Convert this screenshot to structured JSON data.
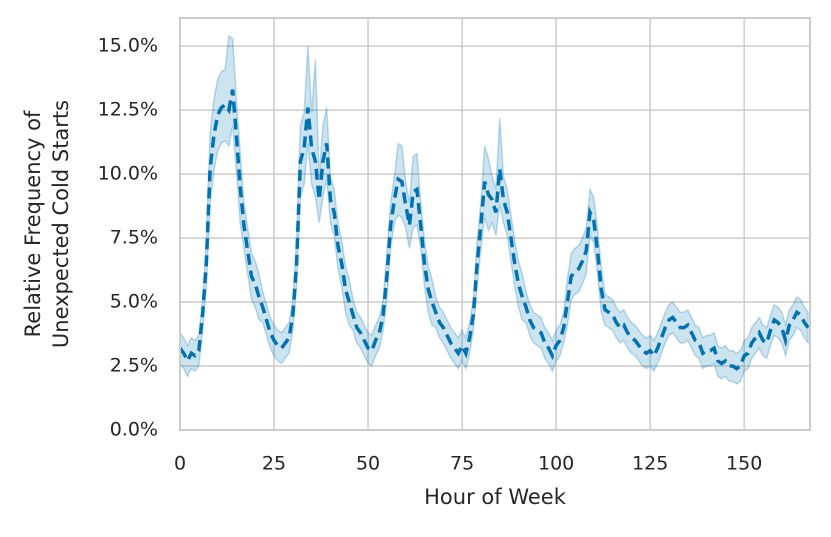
{
  "chart_data": {
    "type": "line",
    "xlabel": "Hour of Week",
    "ylabel": [
      "Relative Frequency of",
      "Unexpected Cold Starts"
    ],
    "xlim": [
      0,
      167.5
    ],
    "xticks": [
      0,
      25,
      50,
      75,
      100,
      125,
      150
    ],
    "ylim": [
      0,
      16.1
    ],
    "yticks": [
      {
        "value": 0,
        "label": "0.0%"
      },
      {
        "value": 2.5,
        "label": "2.5%"
      },
      {
        "value": 5,
        "label": "5.0%"
      },
      {
        "value": 7.5,
        "label": "7.5%"
      },
      {
        "value": 10,
        "label": "10.0%"
      },
      {
        "value": 12.5,
        "label": "12.5%"
      },
      {
        "value": 15,
        "label": "15.0%"
      }
    ],
    "grid": true,
    "x": [
      0,
      1,
      2,
      3,
      4,
      5,
      6,
      7,
      8,
      9,
      10,
      11,
      12,
      13,
      14,
      15,
      16,
      17,
      18,
      19,
      20,
      21,
      22,
      23,
      24,
      25,
      26,
      27,
      28,
      29,
      30,
      31,
      32,
      33,
      34,
      35,
      36,
      37,
      38,
      39,
      40,
      41,
      42,
      43,
      44,
      45,
      46,
      47,
      48,
      49,
      50,
      51,
      52,
      53,
      54,
      55,
      56,
      57,
      58,
      59,
      60,
      61,
      62,
      63,
      64,
      65,
      66,
      67,
      68,
      69,
      70,
      71,
      72,
      73,
      74,
      75,
      76,
      77,
      78,
      79,
      80,
      81,
      82,
      83,
      84,
      85,
      86,
      87,
      88,
      89,
      90,
      91,
      92,
      93,
      94,
      95,
      96,
      97,
      98,
      99,
      100,
      101,
      102,
      103,
      104,
      105,
      106,
      107,
      108,
      109,
      110,
      111,
      112,
      113,
      114,
      115,
      116,
      117,
      118,
      119,
      120,
      121,
      122,
      123,
      124,
      125,
      126,
      127,
      128,
      129,
      130,
      131,
      132,
      133,
      134,
      135,
      136,
      137,
      138,
      139,
      140,
      141,
      142,
      143,
      144,
      145,
      146,
      147,
      148,
      149,
      150,
      151,
      152,
      153,
      154,
      155,
      156,
      157,
      158,
      159,
      160,
      161,
      162,
      163,
      164,
      165,
      166,
      167
    ],
    "series": [
      {
        "color": "#0072b2",
        "values": [
          3.2,
          3.0,
          2.7,
          3.0,
          2.9,
          3.1,
          4.5,
          6.5,
          10.2,
          11.5,
          12.3,
          12.6,
          12.7,
          12.5,
          13.3,
          11.5,
          9.5,
          8.0,
          7.0,
          6.0,
          5.7,
          5.2,
          4.8,
          4.3,
          3.8,
          3.5,
          3.3,
          3.2,
          3.4,
          3.6,
          4.5,
          6.5,
          10.5,
          11.0,
          12.6,
          11.0,
          10.5,
          9.0,
          10.5,
          11.2,
          9.0,
          8.5,
          7.2,
          6.5,
          5.5,
          5.0,
          4.5,
          4.0,
          3.8,
          3.5,
          3.2,
          3.1,
          3.5,
          3.8,
          4.5,
          6.0,
          8.0,
          9.0,
          9.8,
          9.7,
          8.8,
          8.0,
          9.3,
          9.4,
          8.0,
          6.5,
          5.5,
          5.0,
          4.6,
          4.2,
          4.0,
          3.7,
          3.4,
          3.2,
          3.0,
          3.3,
          3.0,
          3.6,
          4.5,
          6.5,
          8.0,
          9.7,
          9.2,
          9.0,
          8.5,
          10.2,
          9.0,
          8.5,
          7.5,
          6.5,
          5.7,
          5.2,
          4.8,
          4.3,
          4.0,
          3.9,
          3.8,
          3.4,
          3.2,
          2.9,
          3.3,
          3.5,
          4.0,
          5.0,
          6.0,
          6.2,
          6.3,
          6.6,
          7.0,
          8.5,
          8.2,
          7.0,
          5.5,
          4.7,
          4.6,
          4.5,
          4.2,
          4.0,
          4.1,
          3.8,
          3.6,
          3.5,
          3.3,
          3.1,
          3.0,
          3.1,
          2.9,
          3.2,
          3.6,
          4.0,
          4.3,
          4.4,
          4.2,
          4.0,
          4.0,
          4.1,
          3.8,
          3.5,
          3.4,
          3.0,
          3.1,
          3.1,
          3.2,
          2.7,
          2.6,
          2.7,
          2.5,
          2.5,
          2.4,
          2.5,
          2.9,
          3.0,
          3.4,
          3.6,
          3.8,
          3.5,
          3.4,
          3.9,
          4.3,
          4.2,
          4.0,
          3.5,
          4.1,
          4.3,
          4.6,
          4.5,
          4.2,
          4.0
        ],
        "lower": [
          2.6,
          2.4,
          2.1,
          2.4,
          2.3,
          2.5,
          3.9,
          5.6,
          8.8,
          10.1,
          10.9,
          11.2,
          11.3,
          11.1,
          11.9,
          10.1,
          8.1,
          7.1,
          6.1,
          5.1,
          4.8,
          4.3,
          4.2,
          3.7,
          3.2,
          2.9,
          2.7,
          2.6,
          2.8,
          3.0,
          3.9,
          5.6,
          9.1,
          9.6,
          11.2,
          9.6,
          9.1,
          8.1,
          9.1,
          9.8,
          8.1,
          7.6,
          6.3,
          5.6,
          4.6,
          4.1,
          3.9,
          3.4,
          3.2,
          2.9,
          2.6,
          2.5,
          2.9,
          3.2,
          3.9,
          5.1,
          7.1,
          8.1,
          8.4,
          8.3,
          7.9,
          7.1,
          7.9,
          8.0,
          7.1,
          5.6,
          4.6,
          4.1,
          4.0,
          3.6,
          3.4,
          3.1,
          2.8,
          2.6,
          2.4,
          2.7,
          2.4,
          3.0,
          3.9,
          5.6,
          7.1,
          8.3,
          7.8,
          8.1,
          7.6,
          8.8,
          8.1,
          7.6,
          6.6,
          5.6,
          4.8,
          4.3,
          4.2,
          3.7,
          3.4,
          3.3,
          3.2,
          2.8,
          2.6,
          2.3,
          2.7,
          2.9,
          3.4,
          4.1,
          5.1,
          5.3,
          5.4,
          5.7,
          6.1,
          7.6,
          7.3,
          6.1,
          4.6,
          4.1,
          4.0,
          3.9,
          3.6,
          3.4,
          3.5,
          3.2,
          3.0,
          2.9,
          2.7,
          2.5,
          2.4,
          2.5,
          2.3,
          2.6,
          3.0,
          3.4,
          3.7,
          3.8,
          3.6,
          3.4,
          3.4,
          3.5,
          3.2,
          2.9,
          2.8,
          2.4,
          2.5,
          2.5,
          2.6,
          2.1,
          2.0,
          2.1,
          1.9,
          1.9,
          1.8,
          1.9,
          2.3,
          2.4,
          2.8,
          3.0,
          3.2,
          2.9,
          2.8,
          3.3,
          3.7,
          3.6,
          3.4,
          2.9,
          3.5,
          3.7,
          4.0,
          3.9,
          3.6,
          3.4
        ],
        "upper": [
          3.8,
          3.6,
          3.3,
          3.6,
          3.5,
          3.7,
          5.1,
          7.4,
          11.6,
          12.9,
          13.7,
          14.0,
          14.1,
          15.4,
          15.3,
          12.9,
          10.9,
          8.9,
          7.9,
          6.9,
          6.6,
          6.1,
          5.4,
          4.9,
          4.4,
          4.1,
          3.9,
          3.8,
          4.0,
          4.2,
          5.1,
          7.4,
          11.9,
          12.4,
          15.0,
          12.4,
          14.5,
          9.9,
          11.9,
          12.6,
          9.9,
          9.4,
          8.1,
          7.4,
          6.4,
          5.9,
          5.1,
          4.6,
          4.4,
          4.1,
          3.8,
          3.7,
          4.1,
          4.4,
          5.1,
          6.9,
          8.9,
          9.9,
          11.2,
          11.1,
          9.7,
          8.9,
          10.7,
          10.8,
          8.9,
          7.4,
          6.4,
          5.9,
          5.2,
          4.8,
          4.6,
          4.3,
          4.0,
          3.8,
          3.6,
          3.9,
          3.6,
          4.2,
          5.1,
          7.4,
          8.9,
          11.1,
          10.6,
          9.9,
          9.4,
          12.2,
          9.9,
          9.4,
          8.4,
          7.4,
          6.6,
          6.1,
          5.4,
          4.9,
          4.6,
          4.5,
          4.4,
          4.0,
          3.8,
          3.5,
          3.9,
          4.1,
          4.6,
          5.9,
          6.9,
          7.1,
          7.2,
          7.5,
          7.9,
          9.4,
          9.1,
          7.9,
          6.4,
          5.3,
          5.2,
          5.1,
          4.8,
          4.6,
          4.7,
          4.4,
          4.2,
          4.1,
          3.9,
          3.7,
          3.6,
          3.7,
          3.5,
          3.8,
          4.2,
          4.6,
          4.9,
          5.0,
          4.8,
          4.6,
          4.6,
          4.7,
          4.4,
          4.1,
          4.0,
          3.6,
          3.7,
          3.7,
          3.8,
          3.3,
          3.2,
          3.3,
          3.1,
          3.1,
          3.0,
          3.1,
          3.5,
          3.6,
          4.0,
          4.2,
          4.4,
          4.1,
          4.0,
          4.5,
          4.9,
          4.8,
          4.6,
          4.1,
          4.7,
          4.9,
          5.2,
          5.1,
          4.8,
          4.6
        ]
      }
    ]
  }
}
